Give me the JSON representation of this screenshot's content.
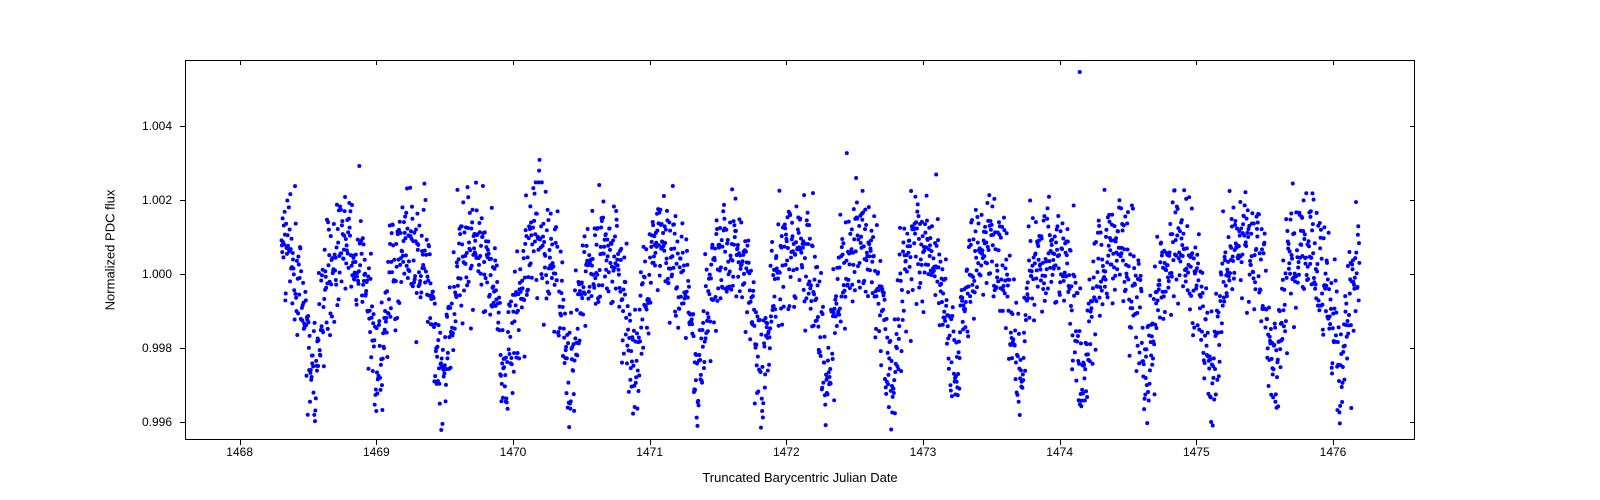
{
  "chart": {
    "type": "scatter",
    "xlabel": "Truncated Barycentric Julian Date",
    "ylabel": "Normalized PDC flux",
    "xlim": [
      1467.6,
      1476.6
    ],
    "ylim": [
      0.9955,
      1.0058
    ],
    "xtick_positions": [
      1468,
      1469,
      1470,
      1471,
      1472,
      1473,
      1474,
      1475,
      1476
    ],
    "xtick_labels": [
      "1468",
      "1469",
      "1470",
      "1471",
      "1472",
      "1473",
      "1474",
      "1475",
      "1476"
    ],
    "ytick_positions": [
      0.996,
      0.998,
      1.0,
      1.002,
      1.004
    ],
    "ytick_labels": [
      "0.996",
      "0.998",
      "1.000",
      "1.002",
      "1.004"
    ],
    "marker_color": "#0000ff",
    "marker_size": 4,
    "background_color": "#ffffff",
    "border_color": "#000000",
    "label_fontsize": 13,
    "tick_fontsize": 12,
    "data": {
      "x_start": 1468.3,
      "x_end": 1476.2,
      "n_points": 2800,
      "period": 0.47,
      "amplitude": 0.0015,
      "noise_std": 0.0008,
      "baseline": 1.0,
      "dip_depth": 0.002,
      "outlier": {
        "x": 1474.15,
        "y": 1.0055
      }
    }
  }
}
